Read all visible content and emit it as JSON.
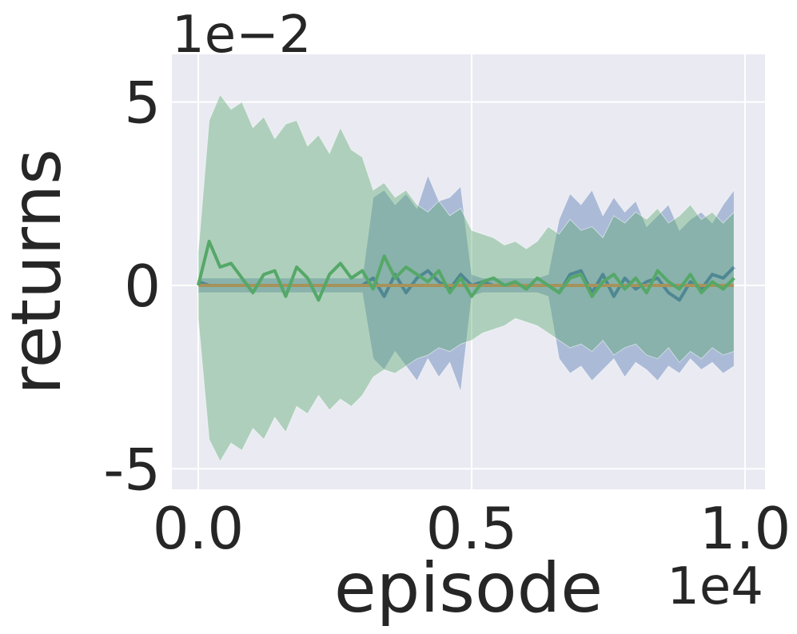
{
  "chart_data": {
    "type": "line",
    "x_label": "episode",
    "y_label": "returns",
    "x_offset_label": "1e4",
    "y_offset_label": "1e−2",
    "x": [
      0,
      0.02,
      0.04,
      0.06,
      0.08,
      0.1,
      0.12,
      0.14,
      0.16,
      0.18,
      0.2,
      0.22,
      0.24,
      0.26,
      0.28,
      0.3,
      0.32,
      0.34,
      0.36,
      0.38,
      0.4,
      0.42,
      0.44,
      0.46,
      0.48,
      0.5,
      0.52,
      0.54,
      0.56,
      0.58,
      0.6,
      0.62,
      0.64,
      0.66,
      0.68,
      0.7,
      0.72,
      0.74,
      0.76,
      0.78,
      0.8,
      0.82,
      0.84,
      0.86,
      0.88,
      0.9,
      0.92,
      0.94,
      0.96,
      0.98
    ],
    "series": [
      {
        "color": "#4c72b0",
        "values": [
          0.1,
          0,
          0,
          0,
          0,
          0,
          0,
          0,
          0,
          0,
          0,
          0,
          0,
          0,
          0,
          0,
          0.2,
          -0.3,
          0.3,
          -0.2,
          0.2,
          0.4,
          0.1,
          -0.1,
          0.3,
          0,
          0.1,
          0,
          0,
          0,
          0,
          0,
          0,
          -0.2,
          0.3,
          0.4,
          -0.2,
          0.3,
          -0.3,
          0.2,
          -0.1,
          0.1,
          0.2,
          -0.2,
          -0.4,
          0.1,
          -0.1,
          0.3,
          0.2,
          0.5
        ],
        "upper": [
          0.2,
          0.2,
          0.2,
          0.2,
          0.2,
          0.2,
          0.2,
          0.2,
          0.2,
          0.2,
          0.2,
          0.2,
          0.2,
          0.2,
          0.2,
          0.2,
          2.4,
          2.6,
          2.2,
          2.5,
          2.1,
          3.0,
          2.3,
          2.4,
          2.7,
          0.3,
          0.2,
          0.2,
          0.2,
          0.2,
          0.2,
          0.2,
          0.3,
          1.8,
          2.5,
          2.2,
          2.6,
          1.9,
          2.4,
          2.0,
          2.3,
          1.6,
          1.9,
          2.2,
          1.5,
          1.8,
          2.0,
          1.7,
          2.2,
          2.6
        ],
        "lower": [
          -0.2,
          -0.2,
          -0.2,
          -0.2,
          -0.2,
          -0.2,
          -0.2,
          -0.2,
          -0.2,
          -0.2,
          -0.2,
          -0.2,
          -0.2,
          -0.2,
          -0.2,
          -0.2,
          -2.0,
          -2.3,
          -1.8,
          -2.2,
          -2.6,
          -2.0,
          -2.5,
          -2.1,
          -2.9,
          -0.3,
          -0.2,
          -0.2,
          -0.2,
          -0.2,
          -0.2,
          -0.2,
          -0.3,
          -2.0,
          -2.4,
          -2.2,
          -2.6,
          -2.3,
          -2.0,
          -2.5,
          -2.1,
          -2.3,
          -2.6,
          -2.2,
          -2.4,
          -2.0,
          -2.3,
          -2.1,
          -2.4,
          -2.2
        ]
      },
      {
        "color": "#dd8452",
        "values": [
          0,
          0,
          0,
          0,
          0,
          0,
          0,
          0,
          0,
          0,
          0,
          0,
          0,
          0,
          0,
          0,
          0,
          0,
          0,
          0,
          0,
          0,
          0,
          0,
          0,
          0,
          0,
          0,
          0,
          0,
          0,
          0,
          0,
          0,
          0,
          0,
          0,
          0,
          0,
          0,
          0,
          0,
          0,
          0,
          0,
          0,
          0,
          0,
          0,
          0
        ]
      },
      {
        "color": "#55a868",
        "values": [
          0,
          1.2,
          0.5,
          0.6,
          0.2,
          -0.2,
          0.3,
          0.4,
          -0.3,
          0.5,
          0.2,
          -0.4,
          0.3,
          0.6,
          0.2,
          0.4,
          -0.1,
          0.8,
          0.2,
          0.5,
          0.3,
          0.1,
          0.4,
          -0.2,
          0.2,
          -0.3,
          0.1,
          0.2,
          0,
          0.1,
          -0.1,
          0.2,
          0,
          -0.2,
          0.2,
          0.3,
          -0.3,
          0.1,
          0.3,
          -0.1,
          0.2,
          -0.2,
          0.4,
          0.1,
          -0.1,
          0.3,
          -0.2,
          0.1,
          -0.1,
          0.2
        ],
        "upper": [
          0.9,
          4.5,
          5.2,
          4.8,
          5.0,
          4.3,
          4.6,
          4.0,
          4.4,
          4.5,
          3.8,
          4.1,
          3.6,
          4.3,
          3.7,
          3.5,
          2.6,
          2.8,
          2.4,
          2.6,
          2.2,
          2.0,
          2.3,
          1.9,
          2.1,
          1.5,
          1.4,
          1.3,
          1.1,
          1.2,
          1.0,
          1.2,
          1.6,
          1.4,
          1.8,
          1.5,
          1.6,
          1.3,
          1.9,
          1.7,
          2.0,
          1.8,
          2.1,
          1.7,
          1.9,
          2.2,
          1.8,
          2.0,
          1.7,
          2.0
        ],
        "lower": [
          -0.9,
          -4.2,
          -4.8,
          -4.3,
          -4.5,
          -3.9,
          -4.2,
          -3.6,
          -4.0,
          -3.3,
          -3.5,
          -3.0,
          -3.4,
          -3.1,
          -3.3,
          -3.0,
          -2.5,
          -2.3,
          -2.4,
          -2.2,
          -2.0,
          -1.9,
          -1.7,
          -1.8,
          -1.6,
          -1.5,
          -1.3,
          -1.2,
          -1.1,
          -0.9,
          -1.0,
          -1.1,
          -1.3,
          -1.5,
          -1.7,
          -1.6,
          -1.8,
          -1.5,
          -1.9,
          -1.7,
          -1.6,
          -1.9,
          -2.0,
          -1.7,
          -2.1,
          -1.8,
          -2.0,
          -1.7,
          -1.9,
          -1.8
        ]
      }
    ],
    "xlim": [
      -0.0482,
      1.0365
    ],
    "ylim": [
      -5.56,
      6.3
    ],
    "xticks": [
      {
        "value": 0,
        "label": "0.0"
      },
      {
        "value": 0.5,
        "label": "0.5"
      },
      {
        "value": 1,
        "label": "1.0"
      }
    ],
    "yticks": [
      -5,
      0,
      5
    ],
    "grid": true,
    "background": "#eaeaf2"
  }
}
